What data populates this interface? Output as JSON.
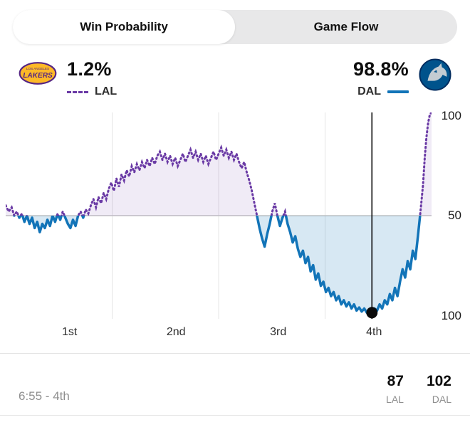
{
  "tabs": {
    "win_probability": "Win Probability",
    "game_flow": "Game Flow"
  },
  "header": {
    "lal": {
      "pct": "1.2%",
      "label": "LAL"
    },
    "dal": {
      "pct": "98.8%",
      "label": "DAL"
    },
    "lakers_logo_text": "LAKERS",
    "lakers_logo_small_text": "LOS ANGELES"
  },
  "chart_data": {
    "type": "line",
    "title": "Win Probability",
    "x_axis": {
      "labels": [
        "1st",
        "2nd",
        "3rd",
        "4th"
      ],
      "range": [
        0,
        100
      ]
    },
    "y_axis": {
      "top_label": "100",
      "mid_label": "50",
      "bottom_label": "100",
      "range": [
        0,
        100
      ]
    },
    "gridlines": {
      "vertical_x": [
        25,
        50,
        75
      ],
      "mid_y": 50
    },
    "series": [
      {
        "name": "LAL win probability",
        "color": "#6a3aa5",
        "fill": "rgba(106,58,165,0.10)",
        "style": "dotted",
        "region": "top"
      },
      {
        "name": "DAL win probability",
        "color": "#1274b8",
        "fill": "rgba(18,116,184,0.17)",
        "style": "solid",
        "region": "bottom"
      }
    ],
    "marker": {
      "x": 86,
      "y": 3,
      "color": "#0a0a0a",
      "label": "current position: 6:55 4th, LAL 1.2% / DAL 98.8%"
    },
    "points": [
      [
        0,
        55
      ],
      [
        0.7,
        52
      ],
      [
        1.4,
        54
      ],
      [
        2,
        50
      ],
      [
        2.6,
        52
      ],
      [
        3.2,
        49
      ],
      [
        3.8,
        51
      ],
      [
        4.4,
        47
      ],
      [
        5,
        50
      ],
      [
        5.6,
        46
      ],
      [
        6.2,
        49
      ],
      [
        6.8,
        44
      ],
      [
        7.4,
        47
      ],
      [
        8,
        42
      ],
      [
        8.6,
        46
      ],
      [
        9.2,
        44
      ],
      [
        9.8,
        48
      ],
      [
        10.4,
        45
      ],
      [
        11,
        50
      ],
      [
        11.6,
        47
      ],
      [
        12.2,
        51
      ],
      [
        12.8,
        48
      ],
      [
        13.4,
        52
      ],
      [
        14,
        49
      ],
      [
        14.6,
        46
      ],
      [
        15.2,
        44
      ],
      [
        15.8,
        48
      ],
      [
        16.4,
        45
      ],
      [
        17,
        50
      ],
      [
        17.6,
        52
      ],
      [
        18.2,
        49
      ],
      [
        18.8,
        53
      ],
      [
        19.4,
        51
      ],
      [
        20,
        55
      ],
      [
        20.6,
        58
      ],
      [
        21.2,
        54
      ],
      [
        21.8,
        59
      ],
      [
        22.4,
        56
      ],
      [
        23,
        61
      ],
      [
        23.6,
        58
      ],
      [
        24.2,
        63
      ],
      [
        24.8,
        66
      ],
      [
        25.4,
        62
      ],
      [
        26,
        68
      ],
      [
        26.6,
        64
      ],
      [
        27.2,
        70
      ],
      [
        27.8,
        67
      ],
      [
        28.4,
        72
      ],
      [
        29,
        69
      ],
      [
        29.6,
        74
      ],
      [
        30.2,
        71
      ],
      [
        30.8,
        75
      ],
      [
        31.4,
        72
      ],
      [
        32,
        76
      ],
      [
        32.6,
        73
      ],
      [
        33.2,
        77
      ],
      [
        33.8,
        74
      ],
      [
        34.4,
        78
      ],
      [
        35,
        75
      ],
      [
        35.6,
        79
      ],
      [
        36.2,
        81
      ],
      [
        36.8,
        77
      ],
      [
        37.4,
        80
      ],
      [
        38,
        76
      ],
      [
        38.6,
        79
      ],
      [
        39.2,
        75
      ],
      [
        39.8,
        78
      ],
      [
        40.4,
        74
      ],
      [
        41,
        77
      ],
      [
        41.6,
        80
      ],
      [
        42.2,
        76
      ],
      [
        42.8,
        79
      ],
      [
        43.4,
        82
      ],
      [
        44,
        78
      ],
      [
        44.6,
        81
      ],
      [
        45.2,
        77
      ],
      [
        45.8,
        80
      ],
      [
        46.4,
        76
      ],
      [
        47,
        79
      ],
      [
        47.6,
        75
      ],
      [
        48.2,
        78
      ],
      [
        48.8,
        81
      ],
      [
        49.4,
        77
      ],
      [
        50,
        80
      ],
      [
        50.6,
        83
      ],
      [
        51.2,
        79
      ],
      [
        51.8,
        82
      ],
      [
        52.4,
        78
      ],
      [
        53,
        81
      ],
      [
        53.6,
        77
      ],
      [
        54.2,
        80
      ],
      [
        54.8,
        76
      ],
      [
        55.4,
        73
      ],
      [
        56,
        76
      ],
      [
        56.6,
        71
      ],
      [
        57.2,
        67
      ],
      [
        57.8,
        62
      ],
      [
        58.4,
        56
      ],
      [
        59,
        50
      ],
      [
        59.6,
        44
      ],
      [
        60.2,
        39
      ],
      [
        60.8,
        35
      ],
      [
        61.4,
        41
      ],
      [
        62,
        46
      ],
      [
        62.6,
        52
      ],
      [
        63.2,
        56
      ],
      [
        63.8,
        50
      ],
      [
        64.4,
        45
      ],
      [
        65,
        49
      ],
      [
        65.6,
        52
      ],
      [
        66.2,
        46
      ],
      [
        66.8,
        42
      ],
      [
        67.4,
        37
      ],
      [
        68,
        40
      ],
      [
        68.6,
        34
      ],
      [
        69.2,
        30
      ],
      [
        69.8,
        33
      ],
      [
        70.4,
        27
      ],
      [
        71,
        30
      ],
      [
        71.6,
        23
      ],
      [
        72.2,
        26
      ],
      [
        72.8,
        19
      ],
      [
        73.4,
        22
      ],
      [
        74,
        16
      ],
      [
        74.6,
        18
      ],
      [
        75.2,
        13
      ],
      [
        75.8,
        15
      ],
      [
        76.4,
        11
      ],
      [
        77,
        13
      ],
      [
        77.6,
        9
      ],
      [
        78.2,
        11
      ],
      [
        78.8,
        7
      ],
      [
        79.4,
        9
      ],
      [
        80,
        6
      ],
      [
        80.6,
        8
      ],
      [
        81.2,
        5
      ],
      [
        81.8,
        7
      ],
      [
        82.4,
        4
      ],
      [
        83,
        5.5
      ],
      [
        83.6,
        3.5
      ],
      [
        84.2,
        5
      ],
      [
        84.8,
        3
      ],
      [
        85.4,
        4
      ],
      [
        86,
        3
      ],
      [
        86.6,
        5
      ],
      [
        87.2,
        4
      ],
      [
        87.8,
        7
      ],
      [
        88.4,
        5
      ],
      [
        89,
        9
      ],
      [
        89.6,
        7
      ],
      [
        90.2,
        12
      ],
      [
        90.8,
        9
      ],
      [
        91.4,
        15
      ],
      [
        92,
        11
      ],
      [
        92.6,
        18
      ],
      [
        93.2,
        24
      ],
      [
        93.8,
        20
      ],
      [
        94.4,
        28
      ],
      [
        95,
        24
      ],
      [
        95.6,
        33
      ],
      [
        96.2,
        29
      ],
      [
        96.8,
        40
      ],
      [
        97.4,
        52
      ],
      [
        98,
        65
      ],
      [
        98.4,
        78
      ],
      [
        98.8,
        88
      ],
      [
        99.2,
        95
      ],
      [
        99.6,
        99
      ],
      [
        100,
        100
      ]
    ]
  },
  "footer": {
    "clock": "6:55 - 4th",
    "scores": [
      {
        "value": "87",
        "team": "LAL"
      },
      {
        "value": "102",
        "team": "DAL"
      }
    ]
  },
  "colors": {
    "lal_purple": "#6a3aa5",
    "dal_blue": "#1274b8",
    "lakers_gold": "#fdb927",
    "lakers_purple": "#552583",
    "mavs_blue": "#00538c",
    "marker_black": "#0a0a0a"
  }
}
